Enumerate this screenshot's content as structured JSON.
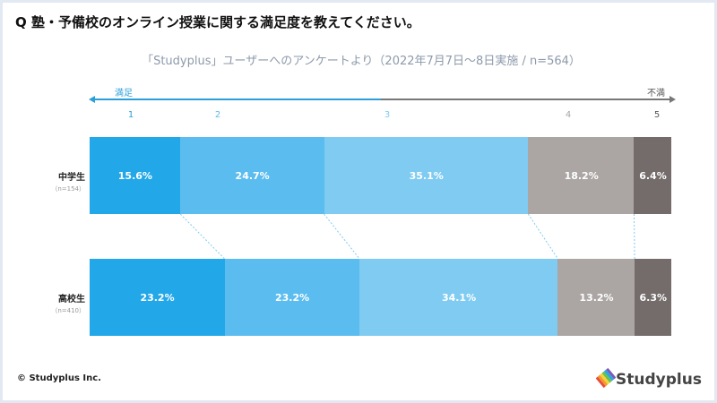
{
  "title": "Q 塾・予備校のオンライン授業に関する満足度を教えてください。",
  "subtitle": "「Studyplus」ユーザーへのアンケートより（2022年7月7日～8日実施 / n=564）",
  "scale": {
    "left_label": "満足",
    "right_label": "不満",
    "numbers": [
      "1",
      "2",
      "3",
      "4",
      "5"
    ]
  },
  "colors": [
    "#22a7e8",
    "#5bbcef",
    "#7fcbf2",
    "#aba6a4",
    "#736c6b"
  ],
  "chart_data": {
    "type": "bar",
    "orientation": "horizontal-stacked-100",
    "categories": [
      "1",
      "2",
      "3",
      "4",
      "5"
    ],
    "rows": [
      {
        "label": "中学生",
        "n": "（n=154）",
        "values": [
          15.6,
          24.7,
          35.1,
          18.2,
          6.4
        ],
        "labels": [
          "15.6%",
          "24.7%",
          "35.1%",
          "18.2%",
          "6.4%"
        ]
      },
      {
        "label": "高校生",
        "n": "（n=410）",
        "values": [
          23.2,
          23.2,
          34.1,
          13.2,
          6.3
        ],
        "labels": [
          "23.2%",
          "23.2%",
          "34.1%",
          "13.2%",
          "6.3%"
        ]
      }
    ]
  },
  "footer": {
    "copyright": "© Studyplus Inc.",
    "logo": "Studyplus"
  }
}
